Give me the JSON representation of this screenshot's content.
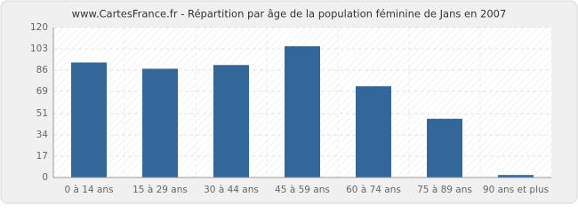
{
  "chart_data": {
    "type": "bar",
    "title": "www.CartesFrance.fr - Répartition par âge de la population féminine de Jans en 2007",
    "categories": [
      "0 à 14 ans",
      "15 à 29 ans",
      "30 à 44 ans",
      "45 à 59 ans",
      "60 à 74 ans",
      "75 à 89 ans",
      "90 ans et plus"
    ],
    "values": [
      92,
      87,
      90,
      105,
      73,
      47,
      2
    ],
    "color": "#336699",
    "ylim": [
      0,
      120
    ],
    "yticks": [
      0,
      17,
      34,
      51,
      69,
      86,
      103,
      120
    ],
    "grid": true
  }
}
